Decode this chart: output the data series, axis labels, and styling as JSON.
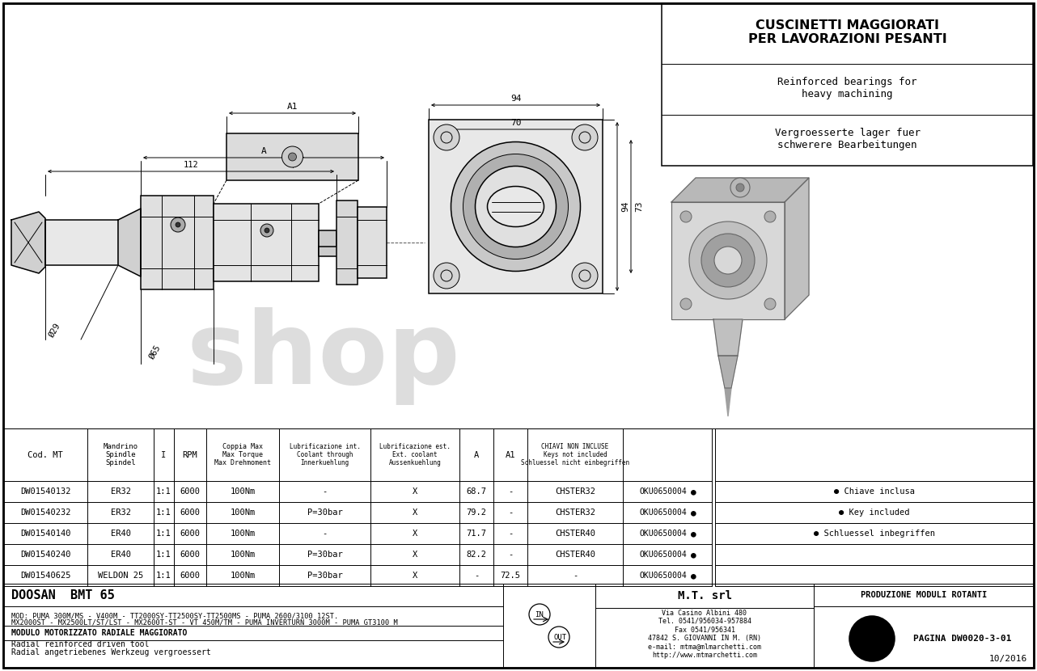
{
  "bg_color": "#ffffff",
  "line_color": "#000000",
  "title_box_line1": "CUSCINETTI MAGGIORATI",
  "title_box_line2": "PER LAVORAZIONI PESANTI",
  "title_box_line3": "Reinforced bearings for\nheavy machining",
  "title_box_line4": "Vergroesserte lager fuer\nschwerere Bearbeitungen",
  "table_rows": [
    [
      "DW01540132",
      "ER32",
      "1:1",
      "6000",
      "100Nm",
      "-",
      "X",
      "68.7",
      "-",
      "CHSTER32",
      "OKU0650004"
    ],
    [
      "DW01540232",
      "ER32",
      "1:1",
      "6000",
      "100Nm",
      "P=30bar",
      "X",
      "79.2",
      "-",
      "CHSTER32",
      "OKU0650004"
    ],
    [
      "DW01540140",
      "ER40",
      "1:1",
      "6000",
      "100Nm",
      "-",
      "X",
      "71.7",
      "-",
      "CHSTER40",
      "OKU0650004"
    ],
    [
      "DW01540240",
      "ER40",
      "1:1",
      "6000",
      "100Nm",
      "P=30bar",
      "X",
      "82.2",
      "-",
      "CHSTER40",
      "OKU0650004"
    ],
    [
      "DW01540625",
      "WELDON 25",
      "1:1",
      "6000",
      "100Nm",
      "P=30bar",
      "X",
      "-",
      "72.5",
      "-",
      "OKU0650004"
    ]
  ],
  "legend": [
    "● Chiave inclusa",
    "● Key included",
    "● Schluessel inbegriffen"
  ],
  "footer_left_title": "DOOSAN  BMT 65",
  "footer_left_mod": "MOD: PUMA 300M/MS - V400M - TT2000SY-TT2500SY-TT2500MS - PUMA 2600/3100 12ST.",
  "footer_left_mod2": "MX2000ST - MX2500LT/ST/LST - MX2600T-ST - VT 450M/TM - PUMA INVERTURN 3000M - PUMA GT3100 M",
  "footer_left_modulo": "MODULO MOTORIZZATO RADIALE MAGGIORATO",
  "footer_left_radial": "Radial reinforced driven tool",
  "footer_left_radial2": "Radial angetriebenes Werkzeug vergroessert",
  "footer_mt_name": "M.T. srl",
  "footer_mt_addr": "Via Casino Albini 480\nTel. 0541/956034-957884\nFax 0541/956341\n47842 S. GIOVANNI IN M. (RN)\ne-mail: mtma@mlmarchetti.com\nhttp://www.mtmarchetti.com",
  "footer_right_prod": "PRODUZIONE MODULI ROTANTI",
  "footer_right_pagina": "PAGINA DW0020-3-01",
  "footer_date": "10/2016",
  "watermark": "shop"
}
